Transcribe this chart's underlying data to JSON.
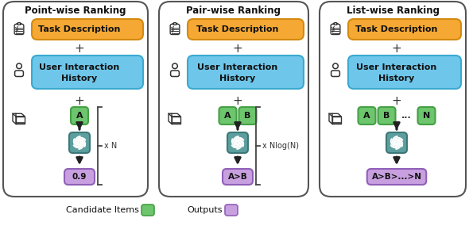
{
  "panels": [
    {
      "title": "Point-wise Ranking",
      "output_label": "0.9",
      "multiplier": "x N",
      "items": [
        "A"
      ]
    },
    {
      "title": "Pair-wise Ranking",
      "output_label": "A>B",
      "multiplier": "x Nlog(N)",
      "items": [
        "A",
        "B"
      ]
    },
    {
      "title": "List-wise Ranking",
      "output_label": "A>B>...>N",
      "multiplier": "",
      "items": [
        "A",
        "B",
        "...",
        "N"
      ]
    }
  ],
  "colors": {
    "task_desc_bg": "#f5a833",
    "task_desc_border": "#d48a10",
    "user_history_bg": "#6ec6ea",
    "user_history_border": "#3aaad0",
    "candidate_item_bg": "#6dc56d",
    "candidate_item_border": "#45a045",
    "gpt_bg": "#5d9e9e",
    "gpt_border": "#3d7878",
    "output_bg": "#c8a0e0",
    "output_border": "#9060b8",
    "panel_border": "#555555",
    "arrow_color": "#222222",
    "icon_color": "#333333"
  },
  "figsize": [
    5.9,
    3.04
  ],
  "dpi": 100
}
